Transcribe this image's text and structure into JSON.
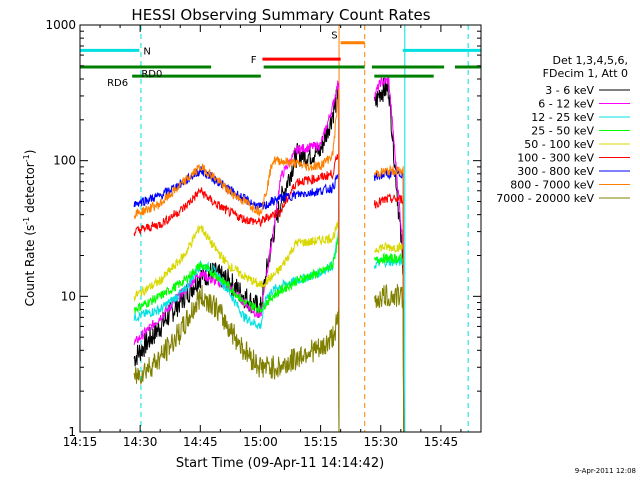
{
  "chart_data": {
    "type": "line",
    "title": "HESSI Observing Summary Count Rates",
    "xlabel": "Start Time (09-Apr-11 14:14:42)",
    "ylabel": "Count Rate (s",
    "ylabel_sup1": "-1",
    "ylabel_mid": " detector",
    "ylabel_sup2": "-1",
    "ylabel_end": ")",
    "yscale": "log",
    "ylim": [
      1,
      1000
    ],
    "xlim_minutes": [
      0,
      100
    ],
    "x_unit": "minutes after 14:15",
    "x_ticks": [
      {
        "value": 0,
        "label": "14:15"
      },
      {
        "value": 15,
        "label": "14:30"
      },
      {
        "value": 30,
        "label": "14:45"
      },
      {
        "value": 45,
        "label": "15:00"
      },
      {
        "value": 60,
        "label": "15:15"
      },
      {
        "value": 75,
        "label": "15:30"
      },
      {
        "value": 90,
        "label": "15:45"
      }
    ],
    "y_ticks": [
      {
        "value": 1,
        "label": "1"
      },
      {
        "value": 10,
        "label": "10"
      },
      {
        "value": 100,
        "label": "100"
      },
      {
        "value": 1000,
        "label": "1000"
      }
    ],
    "legend_header": [
      "Det 1,3,4,5,6,",
      "FDecim 1, Att 0"
    ],
    "timestamp": "9-Apr-2011 12:08",
    "data_intervals": [
      [
        13.5,
        64.6
      ],
      [
        73.4,
        80.7
      ]
    ],
    "series": [
      {
        "name": "3 - 6 keV",
        "color": "#000000",
        "x": [
          13.5,
          20,
          26,
          30,
          33,
          37,
          41,
          45,
          46.5,
          48,
          50,
          54,
          57,
          60,
          63,
          64.6,
          73.4,
          75,
          77,
          80.7
        ],
        "y": [
          3.5,
          6,
          10,
          14,
          15,
          13,
          10,
          8,
          15,
          27,
          50,
          110,
          110,
          120,
          220,
          330,
          250,
          330,
          340,
          15
        ]
      },
      {
        "name": "6 - 12 keV",
        "color": "#ff00ff",
        "x": [
          13.5,
          20,
          26,
          30,
          33,
          37,
          41,
          45,
          46.5,
          48,
          50,
          54,
          57,
          60,
          63,
          64.6,
          73.4,
          75,
          77,
          80.7
        ],
        "y": [
          4.5,
          7,
          11,
          15,
          13,
          12,
          9,
          7,
          14,
          27,
          75,
          120,
          125,
          130,
          250,
          400,
          300,
          380,
          390,
          20
        ]
      },
      {
        "name": "12 - 25 keV",
        "color": "#00e0e0",
        "x": [
          13.5,
          20,
          26,
          30,
          33,
          37,
          41,
          45,
          46.5,
          48,
          50,
          54,
          57,
          60,
          63,
          64.6,
          73.4,
          75,
          77,
          80.7
        ],
        "y": [
          7,
          8,
          11,
          17,
          16,
          11,
          7,
          6,
          10,
          11,
          12,
          13,
          14,
          15,
          17,
          30,
          17,
          18,
          18,
          18
        ]
      },
      {
        "name": "25 - 50 keV",
        "color": "#00ff00",
        "x": [
          13.5,
          20,
          26,
          30,
          33,
          37,
          41,
          45,
          46.5,
          48,
          50,
          54,
          57,
          60,
          63,
          64.6,
          73.4,
          75,
          77,
          80.7
        ],
        "y": [
          8,
          10,
          13,
          17,
          15,
          12,
          9,
          8,
          9,
          10,
          11,
          13,
          14,
          15,
          17,
          28,
          18,
          19,
          19,
          19
        ]
      },
      {
        "name": "50 - 100 keV",
        "color": "#d8d800",
        "x": [
          13.5,
          20,
          26,
          30,
          33,
          37,
          41,
          45,
          46.5,
          48,
          50,
          54,
          57,
          60,
          63,
          64.6,
          73.4,
          75,
          77,
          80.7
        ],
        "y": [
          10,
          13,
          20,
          33,
          24,
          17,
          14,
          12,
          13,
          14,
          16,
          25,
          25,
          26,
          27,
          35,
          22,
          23,
          23,
          23
        ]
      },
      {
        "name": "100 - 300 keV",
        "color": "#ff0000",
        "x": [
          13.5,
          20,
          26,
          30,
          33,
          37,
          41,
          45,
          46.5,
          48,
          50,
          54,
          57,
          60,
          63,
          64.6,
          73.4,
          75,
          77,
          80.7
        ],
        "y": [
          30,
          34,
          45,
          60,
          50,
          42,
          37,
          35,
          38,
          40,
          42,
          70,
          72,
          75,
          80,
          120,
          48,
          50,
          52,
          52
        ]
      },
      {
        "name": "300 - 800 keV",
        "color": "#0000ff",
        "x": [
          13.5,
          20,
          26,
          30,
          33,
          37,
          41,
          45,
          46.5,
          48,
          50,
          54,
          57,
          60,
          63,
          64.6,
          73.4,
          75,
          77,
          80.7
        ],
        "y": [
          48,
          55,
          70,
          85,
          75,
          62,
          52,
          45,
          47,
          50,
          53,
          56,
          58,
          60,
          63,
          80,
          75,
          78,
          80,
          80
        ]
      },
      {
        "name": "800 - 7000 keV",
        "color": "#ff8000",
        "x": [
          13.5,
          20,
          26,
          30,
          33,
          37,
          41,
          45,
          46.5,
          48,
          50,
          54,
          57,
          60,
          63,
          64.6,
          73.4,
          75,
          77,
          80.7
        ],
        "y": [
          40,
          48,
          70,
          90,
          78,
          60,
          50,
          42,
          60,
          100,
          100,
          95,
          90,
          92,
          110,
          340,
          80,
          82,
          84,
          84
        ]
      },
      {
        "name": "7000 - 20000 keV",
        "color": "#808000",
        "x": [
          13.5,
          20,
          26,
          30,
          33,
          37,
          41,
          45,
          46.5,
          48,
          50,
          54,
          57,
          60,
          63,
          64.6,
          73.4,
          75,
          77,
          80.7
        ],
        "y": [
          2.5,
          3.5,
          6,
          10,
          9,
          6,
          4,
          3,
          3,
          3,
          3,
          3.5,
          4,
          4,
          5,
          7,
          9,
          10,
          10,
          10
        ]
      }
    ],
    "flags": [
      {
        "label": "N",
        "color": "#00e0e0",
        "segments": [
          [
            0,
            14.8
          ],
          [
            80.5,
            100
          ]
        ],
        "level": 650
      },
      {
        "label": "S",
        "color": "#ff8000",
        "segments": [
          [
            65,
            71
          ]
        ],
        "level": 740
      },
      {
        "label": "F",
        "color": "#ff0000",
        "segments": [
          [
            45.5,
            65
          ]
        ],
        "level": 560
      },
      {
        "label": "RD0",
        "color": "#008000",
        "segments": [
          [
            0,
            32.7
          ],
          [
            45.8,
            71
          ],
          [
            72.8,
            90.8
          ],
          [
            93.5,
            100
          ]
        ],
        "level": 490
      },
      {
        "label": "RD6",
        "color": "#008000",
        "segments": [
          [
            13,
            45.1
          ],
          [
            73.4,
            88.2
          ]
        ],
        "level": 420
      }
    ],
    "vertical_lines": [
      {
        "x": 0,
        "color": "#00e0e0",
        "style": "solid"
      },
      {
        "x": 15.2,
        "color": "#00e0e0",
        "style": "dashed"
      },
      {
        "x": 81.0,
        "color": "#00e0e0",
        "style": "solid"
      },
      {
        "x": 96.8,
        "color": "#00e0e0",
        "style": "dashed"
      },
      {
        "x": 64.6,
        "color": "#ff8000",
        "style": "solid"
      },
      {
        "x": 71.0,
        "color": "#ff8000",
        "style": "dashed"
      }
    ]
  }
}
